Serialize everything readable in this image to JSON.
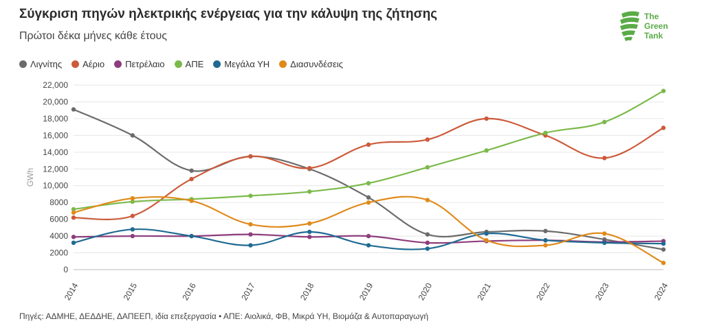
{
  "title": "Σύγκριση πηγών ηλεκτρικής ενέργειας για την κάλυψη της ζήτησης",
  "subtitle": "Πρώτοι δέκα μήνες κάθε έτους",
  "logo": {
    "line1": "The",
    "line2": "Green",
    "line3": "Tank",
    "color": "#5aab47"
  },
  "source": "Πηγές: ΑΔΜΗΕ, ΔΕΔΔΗΕ, ΔΑΠΕΕΠ, ιδία επεξεργασία • ΑΠΕ: Αιολικά, ΦΒ, Μικρά ΥΗ, Βιομάζα & Αυτοπαραγωγή",
  "chart_data": {
    "type": "line",
    "ylabel": "GWh",
    "ylim": [
      0,
      22000
    ],
    "yticks": [
      "0",
      "2000",
      "4000",
      "6000",
      "8000",
      "10,000",
      "12,000",
      "14,000",
      "16,000",
      "18,000",
      "20,000",
      "22,000"
    ],
    "ytick_values": [
      0,
      2000,
      4000,
      6000,
      8000,
      10000,
      12000,
      14000,
      16000,
      18000,
      20000,
      22000
    ],
    "categories": [
      "2014",
      "2015",
      "2016",
      "2017",
      "2018",
      "2019",
      "2020",
      "2021",
      "2022",
      "2023",
      "2024"
    ],
    "grid": true,
    "legend_position": "top-left",
    "series": [
      {
        "name": "Λιγνίτης",
        "color": "#6b6b6b",
        "values": [
          19100,
          16000,
          11800,
          13500,
          12000,
          8600,
          4200,
          4500,
          4600,
          3600,
          2400
        ]
      },
      {
        "name": "Αέριο",
        "color": "#cc5a3a",
        "values": [
          6200,
          6400,
          10800,
          13500,
          12100,
          14900,
          15500,
          18000,
          16000,
          13300,
          16900
        ]
      },
      {
        "name": "Πετρέλαιο",
        "color": "#8e3d7c",
        "values": [
          3900,
          4000,
          4000,
          4200,
          3900,
          4000,
          3200,
          3400,
          3500,
          3300,
          3400
        ]
      },
      {
        "name": "ΑΠΕ",
        "color": "#7bb94a",
        "values": [
          7200,
          8100,
          8400,
          8800,
          9300,
          10300,
          12200,
          14200,
          16300,
          17600,
          21300
        ]
      },
      {
        "name": "Μεγάλα ΥΗ",
        "color": "#1f6a92",
        "values": [
          3200,
          4800,
          4000,
          2900,
          4500,
          2900,
          2500,
          4300,
          3500,
          3200,
          3100
        ]
      },
      {
        "name": "Διασυνδέσεις",
        "color": "#e08a1a",
        "values": [
          6800,
          8500,
          8200,
          5400,
          5500,
          8000,
          8300,
          3500,
          2900,
          4300,
          800
        ]
      }
    ]
  }
}
